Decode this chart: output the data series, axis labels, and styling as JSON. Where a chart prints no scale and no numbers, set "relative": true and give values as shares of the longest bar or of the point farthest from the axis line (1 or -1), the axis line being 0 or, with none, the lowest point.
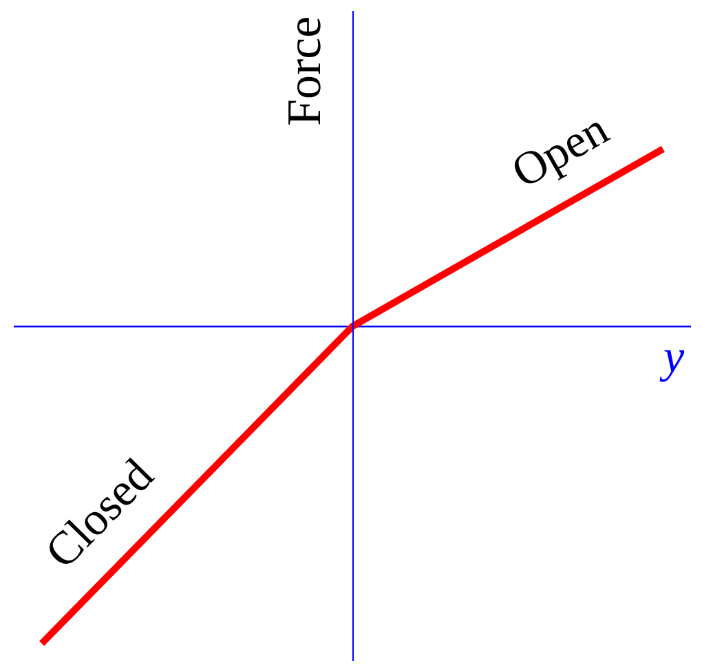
{
  "chart_data": {
    "type": "line",
    "relative": true,
    "xlabel": "y",
    "ylabel": "Force",
    "categories": [
      null,
      null,
      null
    ],
    "series": [
      {
        "color": "#ff0000",
        "values": [
          -1,
          0,
          0.56
        ]
      }
    ],
    "ref_lines": [
      {
        "axis": "y",
        "value": 0,
        "color": "#0000ff"
      }
    ],
    "annotations": [
      "Closed",
      "Open"
    ]
  }
}
